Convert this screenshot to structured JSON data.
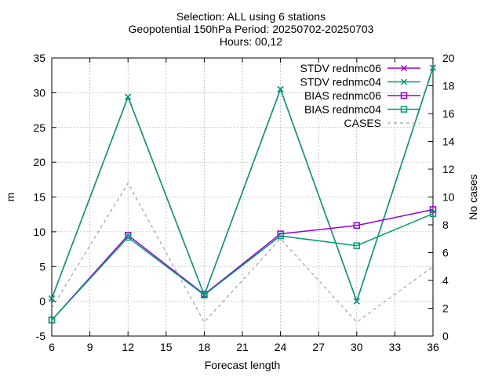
{
  "chart_data": {
    "type": "line",
    "title_lines": [
      "Selection: ALL using     6 stations",
      "Geopotential 150hPa   Period: 20250702-20250703",
      "Hours: 00,12"
    ],
    "xlabel": "Forecast length",
    "ylabel": "m",
    "y2label": "No cases",
    "x": [
      6,
      12,
      18,
      24,
      30,
      36
    ],
    "xlim": [
      6,
      36
    ],
    "xticks": [
      6,
      9,
      12,
      15,
      18,
      21,
      24,
      27,
      30,
      33,
      36
    ],
    "ylim": [
      -5,
      35
    ],
    "yticks": [
      -5,
      0,
      5,
      10,
      15,
      20,
      25,
      30,
      35
    ],
    "y2lim": [
      0,
      20
    ],
    "y2ticks": [
      0,
      2,
      4,
      6,
      8,
      10,
      12,
      14,
      16,
      18,
      20
    ],
    "grid": true,
    "legend_position": "top-right",
    "series": [
      {
        "name": "STDV rednmc06",
        "axis": "y",
        "color": "#9400d3",
        "marker": "x",
        "dash": false,
        "values": [
          0.4,
          29.4,
          0.9,
          30.5,
          0.0,
          33.6
        ]
      },
      {
        "name": "STDV rednmc04",
        "axis": "y",
        "color": "#009e73",
        "marker": "x",
        "dash": false,
        "values": [
          0.4,
          29.4,
          0.9,
          30.5,
          0.0,
          33.6
        ]
      },
      {
        "name": "BIAS rednmc06",
        "axis": "y",
        "color": "#9400d3",
        "marker": "square",
        "dash": false,
        "values": [
          -2.7,
          9.5,
          1.0,
          9.7,
          10.9,
          13.2
        ]
      },
      {
        "name": "BIAS rednmc04",
        "axis": "y",
        "color": "#009e73",
        "marker": "square",
        "dash": false,
        "values": [
          -2.7,
          9.2,
          0.9,
          9.4,
          8.0,
          12.6
        ]
      },
      {
        "name": "CASES",
        "axis": "y2",
        "color": "#a0a0a0",
        "marker": "none",
        "dash": true,
        "values": [
          2,
          11,
          1,
          7,
          1,
          5
        ]
      }
    ]
  }
}
